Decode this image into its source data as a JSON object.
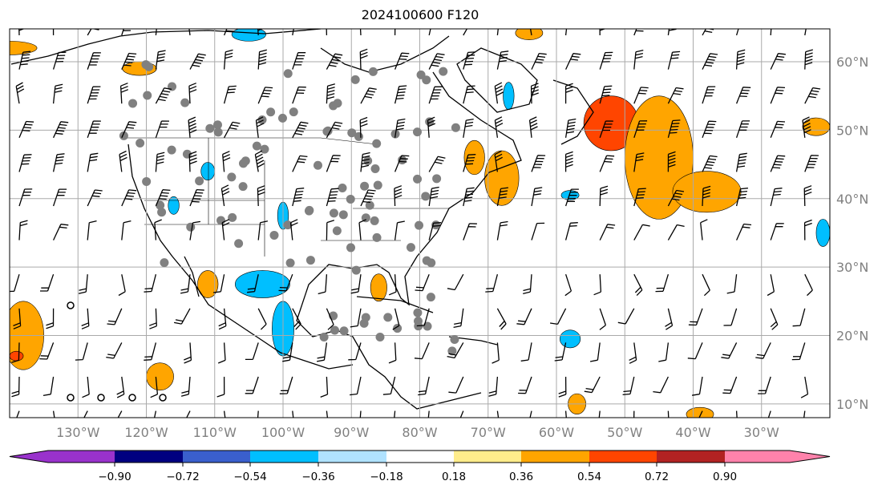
{
  "title": "2024100600 F120",
  "map": {
    "lon_range": [
      -140,
      -20
    ],
    "lat_range": [
      8,
      64.8
    ],
    "lon_labels": [
      "130°W",
      "120°W",
      "110°W",
      "100°W",
      "90°W",
      "80°W",
      "70°W",
      "60°W",
      "50°W",
      "40°W",
      "30°W"
    ],
    "lon_values": [
      -130,
      -120,
      -110,
      -100,
      -90,
      -80,
      -70,
      -60,
      -50,
      -40,
      -30
    ],
    "lat_labels": [
      "60°N",
      "50°N",
      "40°N",
      "30°N",
      "20°N",
      "10°N"
    ],
    "lat_values": [
      60,
      50,
      40,
      30,
      20,
      10
    ],
    "shaded_regions": [
      {
        "lon": -52,
        "lat": 51,
        "rx": 4,
        "ry": 4,
        "value": 0.6
      },
      {
        "lon": -45,
        "lat": 46,
        "rx": 5,
        "ry": 9,
        "value": 0.45
      },
      {
        "lon": -38,
        "lat": 41,
        "rx": 5,
        "ry": 3,
        "value": 0.45
      },
      {
        "lon": -68,
        "lat": 43,
        "rx": 2.5,
        "ry": 4,
        "value": 0.45
      },
      {
        "lon": -72,
        "lat": 46,
        "rx": 1.5,
        "ry": 2.5,
        "value": 0.45
      },
      {
        "lon": -138,
        "lat": 20,
        "rx": 3,
        "ry": 5,
        "value": 0.45
      },
      {
        "lon": -139,
        "lat": 17,
        "rx": 1,
        "ry": 0.7,
        "value": 0.6
      },
      {
        "lon": -118,
        "lat": 14,
        "rx": 2,
        "ry": 2,
        "value": 0.45
      },
      {
        "lon": -111,
        "lat": 27.5,
        "rx": 1.5,
        "ry": 2,
        "value": 0.45
      },
      {
        "lon": -86,
        "lat": 27,
        "rx": 1.2,
        "ry": 2,
        "value": 0.45
      },
      {
        "lon": -57,
        "lat": 10,
        "rx": 1.3,
        "ry": 1.5,
        "value": 0.45
      },
      {
        "lon": -39,
        "lat": 8.5,
        "rx": 2,
        "ry": 1,
        "value": 0.45
      },
      {
        "lon": -22,
        "lat": 50.5,
        "rx": 2,
        "ry": 1.3,
        "value": 0.45
      },
      {
        "lon": -121,
        "lat": 59,
        "rx": 2.5,
        "ry": 1,
        "value": 0.45
      },
      {
        "lon": -64,
        "lat": 64.2,
        "rx": 2,
        "ry": 1,
        "value": 0.45
      },
      {
        "lon": -140,
        "lat": 62,
        "rx": 4,
        "ry": 1,
        "value": 0.45
      },
      {
        "lon": -103,
        "lat": 27.5,
        "rx": 4,
        "ry": 2,
        "value": -0.45
      },
      {
        "lon": -100,
        "lat": 21,
        "rx": 1.6,
        "ry": 4,
        "value": -0.45
      },
      {
        "lon": -105,
        "lat": 64,
        "rx": 2.5,
        "ry": 1,
        "value": -0.45
      },
      {
        "lon": -116,
        "lat": 39,
        "rx": 0.8,
        "ry": 1.3,
        "value": -0.45
      },
      {
        "lon": -111,
        "lat": 44,
        "rx": 1,
        "ry": 1.3,
        "value": -0.45
      },
      {
        "lon": -100,
        "lat": 37.5,
        "rx": 0.8,
        "ry": 2,
        "value": -0.45
      },
      {
        "lon": -58,
        "lat": 19.5,
        "rx": 1.5,
        "ry": 1.3,
        "value": -0.45
      },
      {
        "lon": -58,
        "lat": 40.5,
        "rx": 1.3,
        "ry": 0.7,
        "value": -0.45
      },
      {
        "lon": -21,
        "lat": 35,
        "rx": 1,
        "ry": 2,
        "value": -0.45
      },
      {
        "lon": -67,
        "lat": 55,
        "rx": 0.8,
        "ry": 2,
        "value": -0.45
      }
    ]
  },
  "colorbar": {
    "ticks": [
      "−0.90",
      "−0.72",
      "−0.54",
      "−0.36",
      "−0.18",
      "0.18",
      "0.36",
      "0.54",
      "0.72",
      "0.90"
    ],
    "colors": [
      "#9932cc",
      "#000080",
      "#3a5fcd",
      "#00bfff",
      "#b0e2ff",
      "#ffffff",
      "#ffec8b",
      "#ffa500",
      "#ff4500",
      "#b22222",
      "#ff82ab"
    ]
  }
}
